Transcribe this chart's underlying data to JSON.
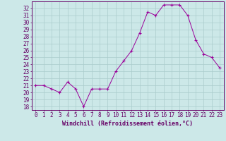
{
  "x": [
    0,
    1,
    2,
    3,
    4,
    5,
    6,
    7,
    8,
    9,
    10,
    11,
    12,
    13,
    14,
    15,
    16,
    17,
    18,
    19,
    20,
    21,
    22,
    23
  ],
  "y": [
    21,
    21,
    20.5,
    20,
    21.5,
    20.5,
    18,
    20.5,
    20.5,
    20.5,
    23,
    24.5,
    26,
    28.5,
    31.5,
    31,
    32.5,
    32.5,
    32.5,
    31,
    27.5,
    25.5,
    25,
    23.5
  ],
  "line_color": "#990099",
  "marker": "+",
  "bg_color": "#cce8e8",
  "grid_color": "#aacccc",
  "axis_color": "#660066",
  "tick_color": "#660066",
  "xlabel": "Windchill (Refroidissement éolien,°C)",
  "ylim": [
    17.5,
    33.0
  ],
  "xlim": [
    -0.5,
    23.5
  ],
  "yticks": [
    18,
    19,
    20,
    21,
    22,
    23,
    24,
    25,
    26,
    27,
    28,
    29,
    30,
    31,
    32
  ],
  "xticks": [
    0,
    1,
    2,
    3,
    4,
    5,
    6,
    7,
    8,
    9,
    10,
    11,
    12,
    13,
    14,
    15,
    16,
    17,
    18,
    19,
    20,
    21,
    22,
    23
  ],
  "tick_fontsize": 5.5,
  "xlabel_fontsize": 6.0
}
